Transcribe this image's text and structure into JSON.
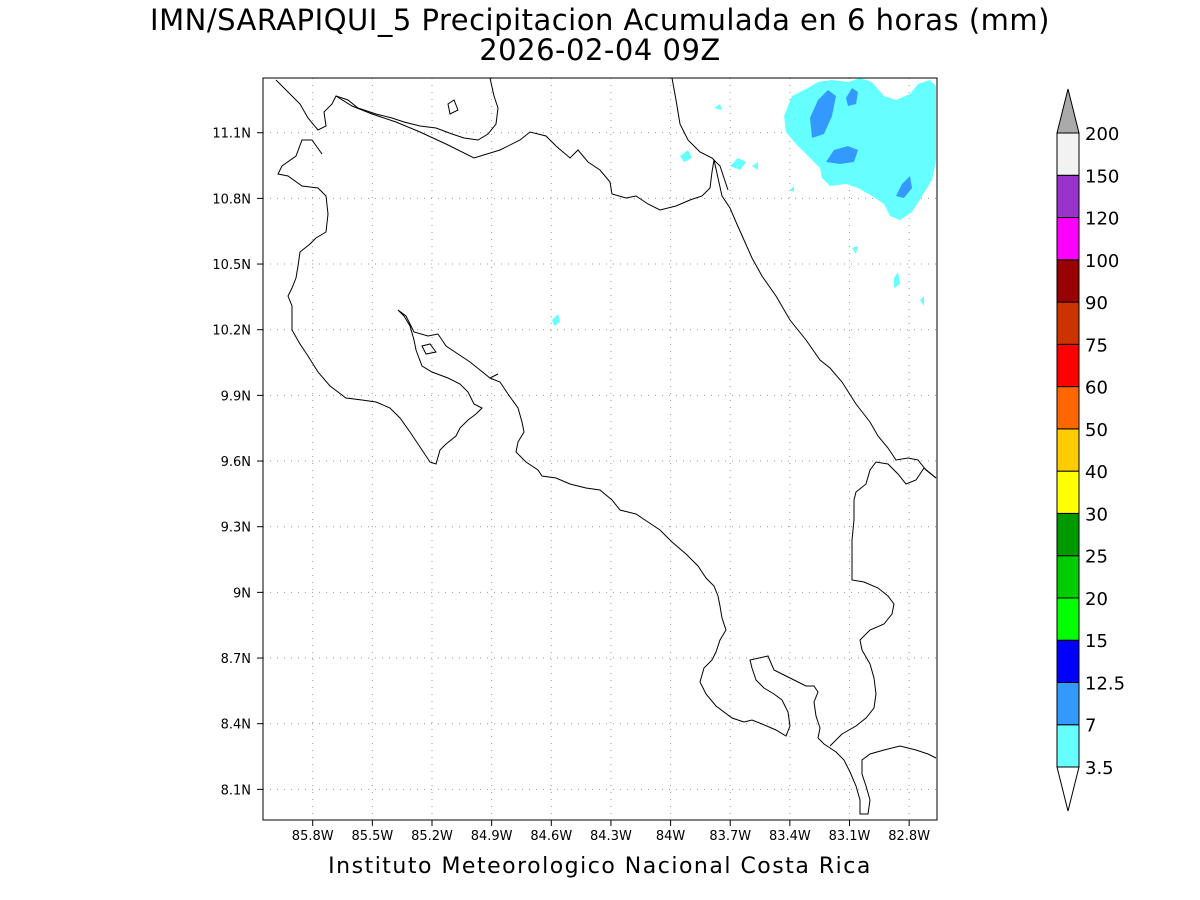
{
  "title": {
    "line1": "IMN/SARAPIQUI_5 Precipitacion Acumulada en 6 horas (mm)",
    "line2": "2026-02-04 09Z"
  },
  "credit": "Instituto Meteorologico Nacional Costa Rica",
  "map": {
    "lon_range": [
      -86.05,
      -82.66
    ],
    "lat_range": [
      7.96,
      11.35
    ],
    "lon_ticks": [
      {
        "v": -85.8,
        "label": "85.8W"
      },
      {
        "v": -85.5,
        "label": "85.5W"
      },
      {
        "v": -85.2,
        "label": "85.2W"
      },
      {
        "v": -84.9,
        "label": "84.9W"
      },
      {
        "v": -84.6,
        "label": "84.6W"
      },
      {
        "v": -84.3,
        "label": "84.3W"
      },
      {
        "v": -84.0,
        "label": "84W"
      },
      {
        "v": -83.7,
        "label": "83.7W"
      },
      {
        "v": -83.4,
        "label": "83.4W"
      },
      {
        "v": -83.1,
        "label": "83.1W"
      },
      {
        "v": -82.8,
        "label": "82.8W"
      }
    ],
    "lat_ticks": [
      {
        "v": 11.1,
        "label": "11.1N"
      },
      {
        "v": 10.8,
        "label": "10.8N"
      },
      {
        "v": 10.5,
        "label": "10.5N"
      },
      {
        "v": 10.2,
        "label": "10.2N"
      },
      {
        "v": 9.9,
        "label": "9.9N"
      },
      {
        "v": 9.6,
        "label": "9.6N"
      },
      {
        "v": 9.3,
        "label": "9.3N"
      },
      {
        "v": 9.0,
        "label": "9N"
      },
      {
        "v": 8.7,
        "label": "8.7N"
      },
      {
        "v": 8.4,
        "label": "8.4N"
      },
      {
        "v": 8.1,
        "label": "8.1N"
      }
    ],
    "grid": "dotted"
  },
  "colorbar": {
    "units": "mm",
    "labels": [
      "3.5",
      "7",
      "12.5",
      "15",
      "20",
      "25",
      "30",
      "40",
      "50",
      "60",
      "75",
      "90",
      "100",
      "120",
      "150",
      "200"
    ],
    "colors": [
      "#66ffff",
      "#3399ff",
      "#0000ff",
      "#00ff00",
      "#00cc00",
      "#009900",
      "#ffff00",
      "#ffcc00",
      "#ff6600",
      "#ff0000",
      "#cc3300",
      "#990000",
      "#ff00ff",
      "#9933cc",
      "#f2f2f2"
    ],
    "over_color": "#aaaaaa",
    "under_color": "#ffffff"
  }
}
